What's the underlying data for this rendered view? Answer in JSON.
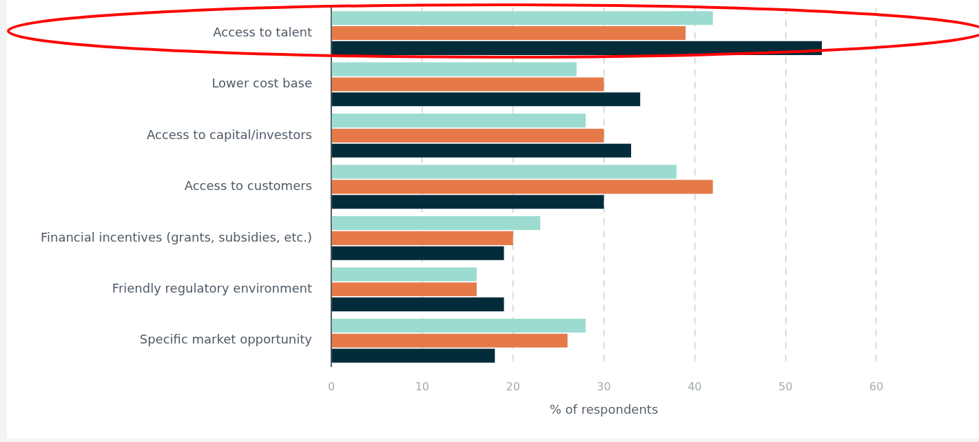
{
  "chart_data": {
    "type": "bar",
    "orientation": "horizontal",
    "categories": [
      "Access to talent",
      "Lower cost base",
      "Access to capital/investors",
      "Access to customers",
      "Financial incentives (grants, subsidies, etc.)",
      "Friendly regulatory environment",
      "Specific market opportunity"
    ],
    "series": [
      {
        "color": "#9cdcd0",
        "values": [
          42,
          27,
          28,
          38,
          23,
          16,
          28
        ]
      },
      {
        "color": "#e57a48",
        "values": [
          39,
          30,
          30,
          42,
          20,
          16,
          26
        ]
      },
      {
        "color": "#032c3a",
        "values": [
          54,
          34,
          33,
          30,
          19,
          19,
          18
        ]
      }
    ],
    "xlabel": "% of respondents",
    "xlim": [
      0,
      60
    ],
    "xticks": [
      0,
      10,
      20,
      30,
      40,
      50,
      60
    ],
    "grid": "x"
  }
}
